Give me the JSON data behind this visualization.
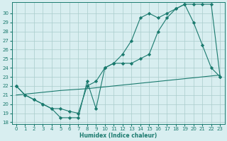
{
  "line1_x": [
    0,
    1,
    2,
    3,
    4,
    5,
    6,
    7,
    8,
    9,
    10,
    11,
    12,
    13,
    14,
    15,
    16,
    17,
    18,
    19,
    20,
    21,
    22,
    23
  ],
  "line1_y": [
    22,
    21,
    20.5,
    20,
    19.5,
    18.5,
    18.5,
    18.5,
    22.5,
    19.5,
    24,
    24.5,
    25.5,
    27,
    29.5,
    30,
    29.5,
    30,
    30.5,
    31,
    29,
    26.5,
    24,
    23
  ],
  "line2_x": [
    0,
    2,
    5,
    8,
    10,
    12,
    14,
    16,
    18,
    20,
    22,
    23
  ],
  "line2_y": [
    21.0,
    21.2,
    21.5,
    21.7,
    21.9,
    22.1,
    22.3,
    22.5,
    22.7,
    22.9,
    23.1,
    23.2
  ],
  "line3_x": [
    0,
    1,
    2,
    3,
    4,
    5,
    6,
    7,
    8,
    9,
    10,
    11,
    12,
    13,
    14,
    15,
    16,
    17,
    18,
    19,
    20,
    21,
    22,
    23
  ],
  "line3_y": [
    22,
    21,
    20.5,
    20,
    19.5,
    19.5,
    19.2,
    19.0,
    22,
    22.5,
    24,
    24.5,
    24.5,
    24.5,
    25,
    25.5,
    28,
    29.5,
    30.5,
    31,
    31,
    31,
    31,
    23
  ],
  "color": "#1a7a6e",
  "bg_color": "#d8eef0",
  "grid_color": "#aacccc",
  "xlabel": "Humidex (Indice chaleur)",
  "xlim": [
    -0.5,
    23.5
  ],
  "ylim": [
    17.8,
    31.2
  ],
  "yticks": [
    18,
    19,
    20,
    21,
    22,
    23,
    24,
    25,
    26,
    27,
    28,
    29,
    30
  ],
  "xticks": [
    0,
    1,
    2,
    3,
    4,
    5,
    6,
    7,
    8,
    9,
    10,
    11,
    12,
    13,
    14,
    15,
    16,
    17,
    18,
    19,
    20,
    21,
    22,
    23
  ],
  "marker": "D",
  "markersize": 2.2,
  "linewidth": 0.8
}
